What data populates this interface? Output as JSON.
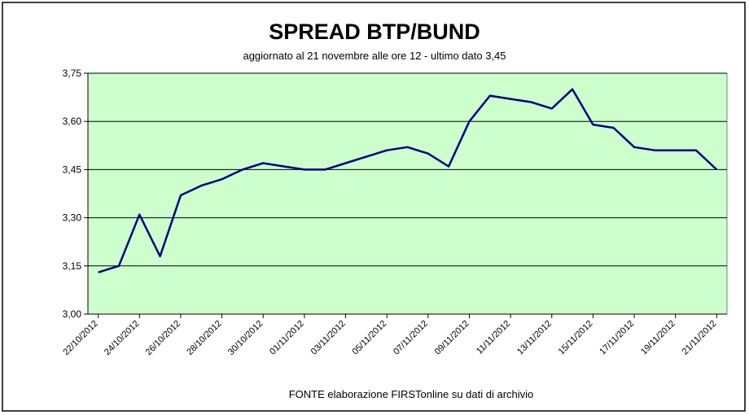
{
  "chart_data": {
    "type": "line",
    "title": "SPREAD  BTP/BUND",
    "subtitle": "aggiornato al 21 novembre alle ore 12 - ultimo dato 3,45",
    "footer": "FONTE elaborazione FIRSTonline su dati di archivio",
    "categories": [
      "22/10/2012",
      null,
      "24/10/2012",
      null,
      "26/10/2012",
      null,
      "28/10/2012",
      null,
      "30/10/2012",
      null,
      "01/11/2012",
      null,
      "03/11/2012",
      null,
      "05/11/2012",
      null,
      "07/11/2012",
      null,
      "09/11/2012",
      null,
      "11/11/2012",
      null,
      "13/11/2012",
      null,
      "15/11/2012",
      null,
      "17/11/2012",
      null,
      "19/11/2012",
      null,
      "21/11/2012"
    ],
    "values": [
      3.13,
      3.15,
      3.31,
      3.18,
      3.37,
      3.4,
      3.42,
      3.45,
      3.47,
      3.46,
      3.45,
      3.45,
      3.47,
      3.49,
      3.51,
      3.52,
      3.5,
      3.46,
      3.6,
      3.68,
      3.67,
      3.66,
      3.64,
      3.7,
      3.59,
      3.58,
      3.52,
      3.51,
      3.51,
      3.51,
      3.45
    ],
    "color": "#000080",
    "plot_background": "#ccffcc",
    "ylim": [
      3.0,
      3.75
    ],
    "yticks": [
      {
        "value": 3.0,
        "label": "3,00"
      },
      {
        "value": 3.15,
        "label": "3,15"
      },
      {
        "value": 3.3,
        "label": "3,30"
      },
      {
        "value": 3.45,
        "label": "3,45"
      },
      {
        "value": 3.6,
        "label": "3,60"
      },
      {
        "value": 3.75,
        "label": "3,75"
      }
    ],
    "grid": true
  }
}
